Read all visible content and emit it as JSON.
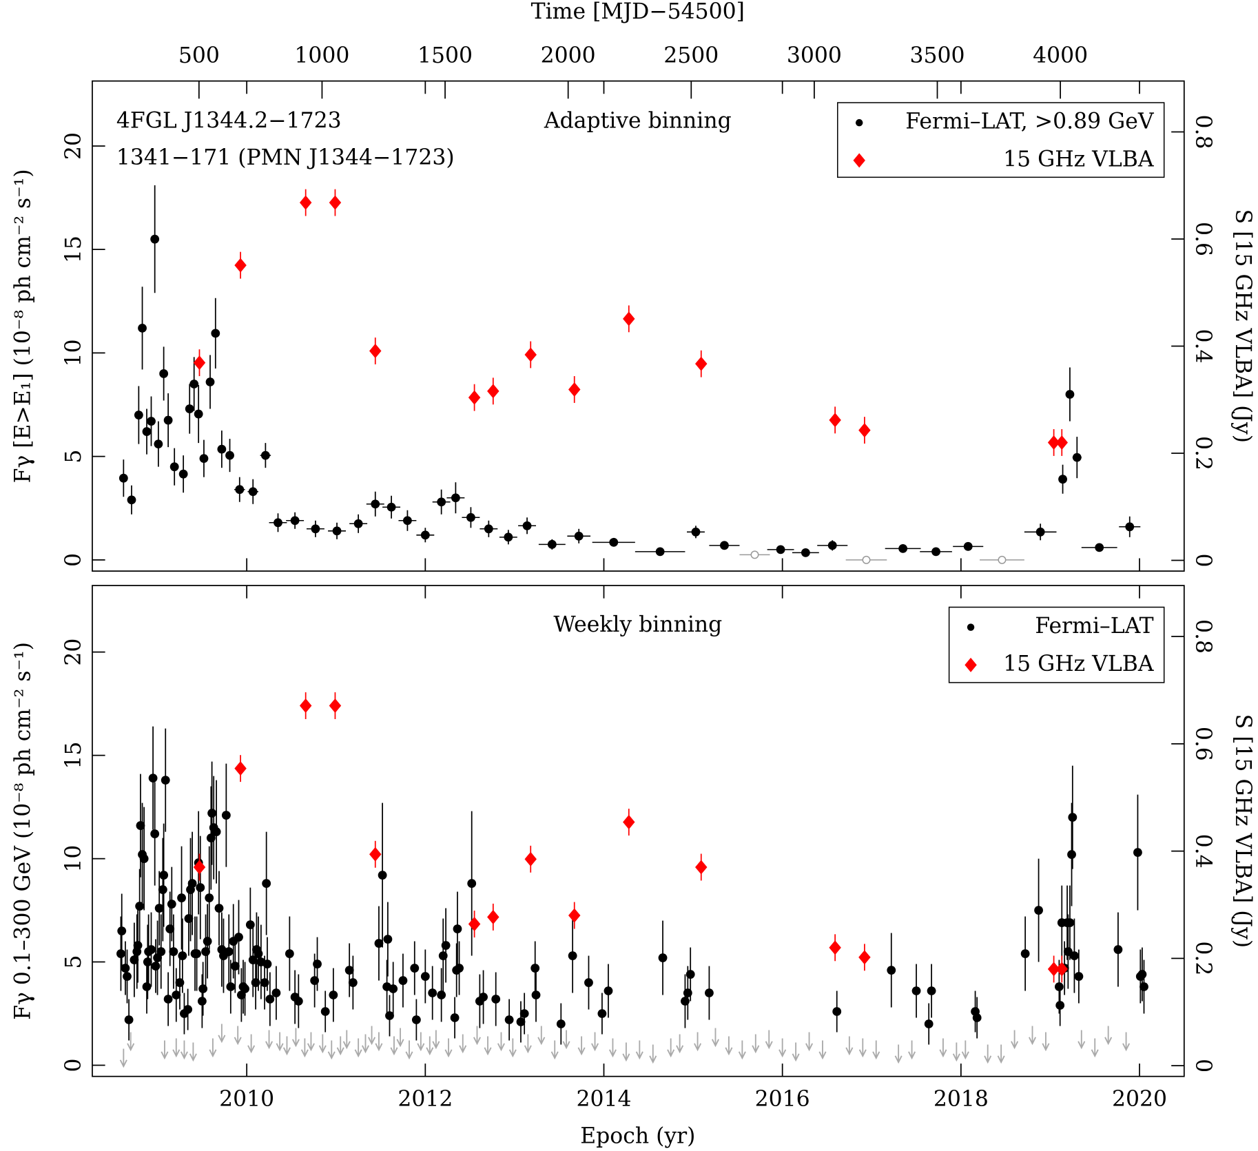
{
  "chart_data": [
    {
      "type": "scatter",
      "x2label": "Time [MJD−54500]",
      "x2lim": [
        66.5,
        4503
      ],
      "x2ticks": [
        500,
        1000,
        1500,
        2000,
        2500,
        3000,
        3500,
        4000
      ],
      "source_name": "4FGL J1344.2−1723",
      "source_name_radio": "1341−171 (PMN J1344−1723)",
      "source_name_radio_color": "#ff0000",
      "binning_label": "Adaptive binning",
      "ylabel": "Fγ [E>E₁] (10⁻⁸ ph cm⁻² s⁻¹)",
      "y2label": "S [15 GHz VLBA] (Jy)",
      "y2color": "#ff0000",
      "xlim": [
        2008.27,
        2020.5
      ],
      "xticks": [
        2010,
        2012,
        2014,
        2016,
        2018,
        2020
      ],
      "ylim": [
        -0.54,
        23.14
      ],
      "yticks": [
        0,
        5,
        10,
        15,
        20
      ],
      "y2lim": [
        -0.02,
        0.895
      ],
      "y2ticks": [
        0,
        0.2,
        0.4,
        0.6,
        0.8
      ],
      "legend": "upper right",
      "series": [
        {
          "name": "Fermi–LAT, >0.89 GeV",
          "color": "#000000",
          "marker": "circle",
          "x": [
            2008.62,
            2008.71,
            2008.79,
            2008.83,
            2008.88,
            2008.93,
            2008.97,
            2009.01,
            2009.07,
            2009.12,
            2009.19,
            2009.29,
            2009.36,
            2009.41,
            2009.46,
            2009.52,
            2009.59,
            2009.65,
            2009.72,
            2009.81,
            2009.92,
            2010.07,
            2010.21,
            2010.35,
            2010.54,
            2010.77,
            2011.01,
            2011.25,
            2011.44,
            2011.62,
            2011.8,
            2012.0,
            2012.18,
            2012.34,
            2012.51,
            2012.71,
            2012.93,
            2013.14,
            2013.42,
            2013.72,
            2014.11,
            2014.63,
            2015.03,
            2015.35,
            2015.98,
            2016.26,
            2016.56,
            2017.35,
            2017.72,
            2018.08,
            2018.89,
            2019.14,
            2019.22,
            2019.3,
            2019.55,
            2019.89
          ],
          "values": [
            3.95,
            2.9,
            7.0,
            11.2,
            6.2,
            6.7,
            15.5,
            5.6,
            9.0,
            6.75,
            4.5,
            4.15,
            7.3,
            8.5,
            7.05,
            4.9,
            8.6,
            10.95,
            5.35,
            5.05,
            3.4,
            3.3,
            5.05,
            1.8,
            1.9,
            1.5,
            1.4,
            1.75,
            2.7,
            2.55,
            1.9,
            1.2,
            2.8,
            3.0,
            2.05,
            1.5,
            1.1,
            1.65,
            0.75,
            1.15,
            0.85,
            0.4,
            1.35,
            0.7,
            0.5,
            0.35,
            0.7,
            0.55,
            0.4,
            0.65,
            1.35,
            3.9,
            8.0,
            4.95,
            0.6,
            1.6
          ],
          "errors": [
            0.9,
            0.7,
            1.4,
            2.0,
            1.1,
            1.2,
            2.6,
            1.1,
            1.3,
            1.3,
            0.9,
            0.9,
            1.2,
            1.3,
            1.4,
            0.9,
            1.3,
            1.7,
            0.9,
            0.8,
            0.6,
            0.6,
            0.6,
            0.45,
            0.4,
            0.4,
            0.4,
            0.45,
            0.6,
            0.55,
            0.5,
            0.35,
            0.6,
            0.75,
            0.5,
            0.4,
            0.35,
            0.4,
            0.25,
            0.35,
            0.2,
            0.15,
            0.3,
            0.2,
            0.2,
            0.2,
            0.25,
            0.2,
            0.15,
            0.2,
            0.4,
            0.7,
            1.3,
            1.0,
            0.2,
            0.5
          ],
          "xerr": [
            0.03,
            0.03,
            0.03,
            0.03,
            0.03,
            0.03,
            0.03,
            0.03,
            0.03,
            0.03,
            0.03,
            0.03,
            0.03,
            0.03,
            0.03,
            0.03,
            0.03,
            0.03,
            0.03,
            0.03,
            0.06,
            0.06,
            0.06,
            0.1,
            0.1,
            0.1,
            0.1,
            0.1,
            0.1,
            0.1,
            0.1,
            0.1,
            0.1,
            0.1,
            0.1,
            0.1,
            0.1,
            0.1,
            0.15,
            0.13,
            0.24,
            0.28,
            0.1,
            0.17,
            0.15,
            0.15,
            0.17,
            0.2,
            0.18,
            0.17,
            0.18,
            0.04,
            0.04,
            0.05,
            0.2,
            0.12
          ]
        },
        {
          "color": "#999999",
          "marker": "open-circle",
          "x": [
            2015.69,
            2016.94,
            2018.46
          ],
          "values": [
            0.25,
            0,
            0
          ],
          "xerr": [
            0.17,
            0.23,
            0.25
          ]
        },
        {
          "name": "15 GHz VLBA",
          "color": "#ff0000",
          "marker": "diamond",
          "axis": "y2",
          "x": [
            2009.47,
            2009.93,
            2010.66,
            2010.99,
            2011.44,
            2012.55,
            2012.76,
            2013.18,
            2013.67,
            2014.28,
            2015.09,
            2016.59,
            2016.92,
            2019.04,
            2019.13
          ],
          "values": [
            0.369,
            0.551,
            0.668,
            0.668,
            0.391,
            0.304,
            0.316,
            0.384,
            0.319,
            0.451,
            0.367,
            0.262,
            0.243,
            0.22,
            0.22
          ],
          "errors": [
            0.025,
            0.025,
            0.025,
            0.025,
            0.025,
            0.025,
            0.025,
            0.025,
            0.025,
            0.025,
            0.025,
            0.025,
            0.025,
            0.025,
            0.025
          ]
        }
      ]
    },
    {
      "type": "scatter",
      "xlabel": "Epoch (yr)",
      "binning_label": "Weekly binning",
      "ylabel": "Fγ 0.1–300 GeV (10⁻⁸ ph cm⁻² s⁻¹)",
      "y2label": "S [15 GHz VLBA] (Jy)",
      "y2color": "#ff0000",
      "xlim": [
        2008.27,
        2020.5
      ],
      "xticks": [
        2010,
        2012,
        2014,
        2016,
        2018,
        2020
      ],
      "ylim": [
        -0.54,
        23.22
      ],
      "yticks": [
        0,
        5,
        10,
        15,
        20
      ],
      "y2lim": [
        -0.02,
        0.895
      ],
      "y2ticks": [
        0,
        0.2,
        0.4,
        0.6,
        0.8
      ],
      "legend": "upper right",
      "series": [
        {
          "name": "Fermi–LAT",
          "color": "#000000",
          "marker": "circle",
          "x": [
            2008.59,
            2008.6,
            2008.64,
            2008.66,
            2008.68,
            2008.74,
            2008.77,
            2008.78,
            2008.8,
            2008.81,
            2008.83,
            2008.85,
            2008.88,
            2008.89,
            2008.9,
            2008.93,
            2008.95,
            2008.97,
            2008.98,
            2009.0,
            2009.02,
            2009.04,
            2009.06,
            2009.07,
            2009.09,
            2009.12,
            2009.14,
            2009.16,
            2009.18,
            2009.21,
            2009.25,
            2009.27,
            2009.28,
            2009.3,
            2009.34,
            2009.35,
            2009.37,
            2009.39,
            2009.42,
            2009.44,
            2009.46,
            2009.48,
            2009.5,
            2009.51,
            2009.54,
            2009.56,
            2009.58,
            2009.6,
            2009.61,
            2009.63,
            2009.66,
            2009.69,
            2009.72,
            2009.74,
            2009.77,
            2009.8,
            2009.82,
            2009.85,
            2009.87,
            2009.91,
            2009.94,
            2009.96,
            2009.98,
            2010.04,
            2010.07,
            2010.1,
            2010.11,
            2010.13,
            2010.16,
            2010.2,
            2010.22,
            2010.23,
            2010.26,
            2010.33,
            2010.48,
            2010.54,
            2010.58,
            2010.76,
            2010.79,
            2010.88,
            2010.97,
            2011.15,
            2011.19,
            2011.48,
            2011.52,
            2011.57,
            2011.58,
            2011.6,
            2011.64,
            2011.75,
            2011.88,
            2011.9,
            2012.0,
            2012.08,
            2012.18,
            2012.2,
            2012.23,
            2012.33,
            2012.35,
            2012.36,
            2012.38,
            2012.52,
            2012.61,
            2012.65,
            2012.79,
            2012.94,
            2013.07,
            2013.11,
            2013.23,
            2013.24,
            2013.52,
            2013.65,
            2013.83,
            2013.98,
            2014.05,
            2014.66,
            2014.91,
            2014.94,
            2014.97,
            2015.18,
            2016.61,
            2017.22,
            2017.5,
            2017.64,
            2017.67,
            2018.16,
            2018.18,
            2018.72,
            2018.87,
            2019.1,
            2019.11,
            2019.13,
            2019.16,
            2019.19,
            2019.2,
            2019.22,
            2019.24,
            2019.25,
            2019.27,
            2019.32,
            2019.76,
            2019.98,
            2020.01,
            2020.03,
            2020.05
          ],
          "values": [
            5.4,
            6.5,
            4.7,
            4.3,
            2.2,
            5.1,
            5.5,
            5.8,
            7.7,
            11.6,
            10.2,
            10.0,
            3.8,
            5.0,
            5.5,
            5.6,
            13.9,
            11.2,
            4.8,
            5.2,
            7.6,
            5.5,
            8.5,
            9.2,
            13.8,
            3.2,
            6.6,
            7.8,
            5.5,
            3.4,
            4.0,
            8.1,
            5.3,
            2.5,
            2.7,
            7.1,
            8.5,
            8.8,
            5.4,
            5.4,
            9.8,
            8.6,
            3.1,
            3.7,
            5.5,
            6.0,
            8.1,
            11.0,
            12.2,
            11.5,
            11.3,
            7.6,
            5.6,
            5.3,
            12.1,
            5.5,
            3.8,
            6.0,
            4.8,
            6.2,
            3.4,
            3.8,
            3.7,
            6.8,
            5.1,
            4.0,
            5.6,
            5.4,
            5.0,
            4.0,
            8.8,
            4.9,
            3.2,
            3.5,
            5.4,
            3.3,
            3.1,
            4.1,
            4.9,
            2.6,
            3.4,
            4.6,
            4.0,
            5.9,
            9.2,
            3.8,
            6.1,
            2.4,
            3.7,
            4.1,
            4.7,
            2.2,
            4.3,
            3.5,
            3.4,
            5.3,
            5.8,
            2.3,
            4.6,
            6.6,
            4.7,
            8.8,
            3.1,
            3.3,
            3.2,
            2.2,
            2.1,
            2.5,
            4.7,
            3.4,
            2.0,
            5.3,
            4.0,
            2.5,
            3.6,
            5.2,
            3.1,
            3.5,
            4.4,
            3.5,
            2.6,
            4.6,
            3.6,
            2.0,
            3.6,
            2.6,
            2.3,
            5.4,
            7.5,
            3.8,
            2.9,
            6.9,
            4.7,
            6.9,
            5.5,
            6.9,
            10.2,
            12.0,
            5.3,
            4.3,
            5.6,
            10.3,
            4.3,
            4.4,
            3.8
          ],
          "errors": [
            1.8,
            1.8,
            1.3,
            1.3,
            1.0,
            1.8,
            1.8,
            1.8,
            1.8,
            2.5,
            2.5,
            2.5,
            1.3,
            1.8,
            1.8,
            1.8,
            2.5,
            2.5,
            1.3,
            1.8,
            1.8,
            1.8,
            2.5,
            2.5,
            2.5,
            1.3,
            1.8,
            1.8,
            1.8,
            1.3,
            1.3,
            2.5,
            1.8,
            1.0,
            1.0,
            1.8,
            2.5,
            2.5,
            1.8,
            1.8,
            2.5,
            2.5,
            1.3,
            1.3,
            1.8,
            1.8,
            2.5,
            2.5,
            2.5,
            2.5,
            2.5,
            1.8,
            1.8,
            1.8,
            2.5,
            1.8,
            1.3,
            1.8,
            1.3,
            1.8,
            1.3,
            1.3,
            1.3,
            1.8,
            1.8,
            1.3,
            1.8,
            1.8,
            1.8,
            1.3,
            2.5,
            1.3,
            1.3,
            1.3,
            1.8,
            1.3,
            1.3,
            1.3,
            1.3,
            1.0,
            1.3,
            1.3,
            1.3,
            1.8,
            3.5,
            1.3,
            1.8,
            1.0,
            1.3,
            1.3,
            1.3,
            1.0,
            1.3,
            1.3,
            1.3,
            1.8,
            1.8,
            1.0,
            1.3,
            1.8,
            1.3,
            3.5,
            1.3,
            1.3,
            1.3,
            1.0,
            1.0,
            1.0,
            1.3,
            1.3,
            1.0,
            1.8,
            1.3,
            1.0,
            1.3,
            1.8,
            1.3,
            1.3,
            1.3,
            1.3,
            1.0,
            1.8,
            1.3,
            1.0,
            1.3,
            1.0,
            1.0,
            1.8,
            2.5,
            1.3,
            1.0,
            1.8,
            1.3,
            1.8,
            1.8,
            1.8,
            2.5,
            2.5,
            1.8,
            1.3,
            1.8,
            2.8,
            1.3,
            1.3,
            1.3
          ]
        },
        {
          "color": "#aaaaaa",
          "marker": "arrow",
          "x": [
            2008.62,
            2008.7,
            2009.08,
            2009.21,
            2009.3,
            2009.4,
            2009.62,
            2009.72,
            2009.9,
            2010.05,
            2010.25,
            2010.37,
            2010.45,
            2010.55,
            2010.65,
            2010.72,
            2010.85,
            2010.95,
            2011.05,
            2011.12,
            2011.25,
            2011.33,
            2011.4,
            2011.48,
            2011.65,
            2011.72,
            2011.82,
            2011.95,
            2012.05,
            2012.12,
            2012.26,
            2012.42,
            2012.58,
            2012.7,
            2012.85,
            2012.98,
            2013.15,
            2013.3,
            2013.45,
            2013.58,
            2013.75,
            2013.9,
            2014.1,
            2014.25,
            2014.4,
            2014.55,
            2014.75,
            2014.85,
            2015.05,
            2015.25,
            2015.4,
            2015.55,
            2015.7,
            2015.85,
            2016.0,
            2016.15,
            2016.3,
            2016.45,
            2016.75,
            2016.9,
            2017.05,
            2017.3,
            2017.45,
            2017.8,
            2017.95,
            2018.05,
            2018.3,
            2018.45,
            2018.6,
            2018.8,
            2018.95,
            2019.35,
            2019.5,
            2019.65,
            2019.85
          ],
          "values": [
            0.8,
            1.6,
            1.2,
            1.3,
            1.2,
            1.1,
            1.3,
            2.0,
            1.9,
            1.5,
            1.7,
            1.6,
            1.4,
            1.8,
            1.3,
            1.6,
            1.5,
            1.2,
            1.4,
            1.7,
            1.3,
            1.5,
            1.9,
            1.6,
            1.4,
            1.8,
            1.2,
            1.6,
            1.4,
            1.7,
            1.3,
            1.5,
            1.9,
            1.4,
            1.6,
            1.3,
            1.5,
            1.9,
            1.2,
            1.7,
            1.4,
            1.6,
            1.3,
            1.1,
            1.2,
            1.0,
            1.3,
            1.5,
            1.6,
            1.8,
            1.4,
            1.2,
            1.5,
            1.7,
            1.3,
            1.1,
            1.6,
            1.2,
            1.4,
            1.3,
            1.2,
            1.0,
            1.2,
            1.3,
            1.1,
            1.2,
            1.0,
            1.0,
            1.7,
            1.9,
            1.6,
            1.7,
            1.3,
            1.9,
            1.6
          ]
        },
        {
          "name": "15 GHz VLBA",
          "color": "#ff0000",
          "marker": "diamond",
          "axis": "y2",
          "x": [
            2009.47,
            2009.93,
            2010.66,
            2010.99,
            2011.44,
            2012.55,
            2012.76,
            2013.18,
            2013.67,
            2014.28,
            2015.09,
            2016.59,
            2016.92,
            2019.04,
            2019.13
          ],
          "values": [
            0.37,
            0.554,
            0.671,
            0.671,
            0.394,
            0.264,
            0.277,
            0.385,
            0.28,
            0.454,
            0.37,
            0.22,
            0.202,
            0.18,
            0.18
          ],
          "errors": [
            0.025,
            0.025,
            0.025,
            0.025,
            0.025,
            0.025,
            0.025,
            0.025,
            0.025,
            0.025,
            0.025,
            0.025,
            0.025,
            0.025,
            0.025
          ]
        }
      ]
    }
  ]
}
